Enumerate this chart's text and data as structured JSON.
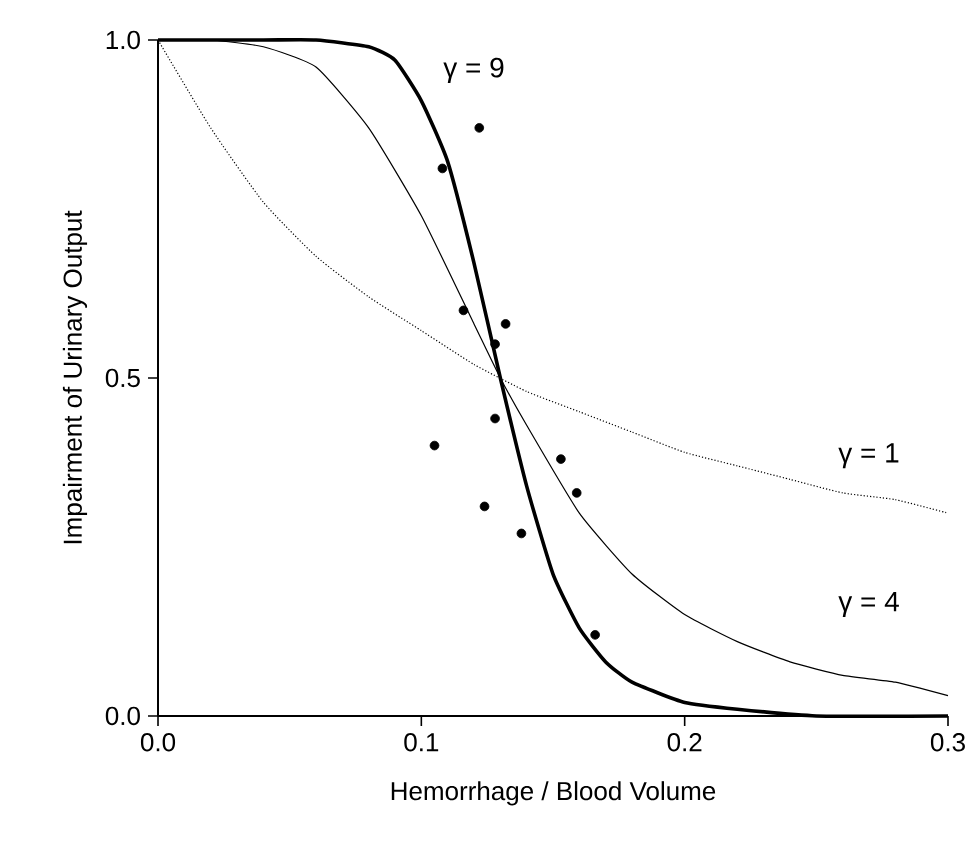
{
  "chart_data": {
    "type": "line",
    "xlabel": "Hemorrhage / Blood Volume",
    "ylabel": "Impairment of Urinary Output",
    "xlim": [
      0,
      0.3
    ],
    "xticks": [
      {
        "value": 0,
        "label": "0.0"
      },
      0.1,
      0.2,
      0.3
    ],
    "ylim": [
      0,
      1
    ],
    "yticks": [
      {
        "value": 0,
        "label": "0.0"
      },
      0.5,
      {
        "value": 1,
        "label": "1.0"
      }
    ],
    "grid": false,
    "legend": false,
    "series": [
      {
        "name": "γ = 1",
        "color": "#000000",
        "line_style": "dotted",
        "marker": "none",
        "x": [
          0,
          0.02,
          0.04,
          0.06,
          0.08,
          0.1,
          0.12,
          0.14,
          0.16,
          0.18,
          0.2,
          0.22,
          0.24,
          0.26,
          0.28,
          0.3
        ],
        "values": [
          1,
          0.87,
          0.76,
          0.68,
          0.62,
          0.57,
          0.52,
          0.48,
          0.45,
          0.42,
          0.39,
          0.37,
          0.35,
          0.33,
          0.32,
          0.3
        ]
      },
      {
        "name": "γ = 4",
        "color": "#000000",
        "line_style": "solid",
        "marker": "none",
        "x": [
          0,
          0.02,
          0.04,
          0.06,
          0.08,
          0.1,
          0.12,
          0.13,
          0.14,
          0.16,
          0.18,
          0.2,
          0.22,
          0.24,
          0.26,
          0.28,
          0.3
        ],
        "values": [
          1,
          1,
          0.99,
          0.96,
          0.87,
          0.74,
          0.58,
          0.5,
          0.43,
          0.3,
          0.21,
          0.15,
          0.11,
          0.08,
          0.06,
          0.05,
          0.03
        ]
      },
      {
        "name": "γ = 9",
        "color": "#000000",
        "line_style": "solid",
        "marker": "none",
        "x": [
          0,
          0.04,
          0.06,
          0.08,
          0.09,
          0.1,
          0.11,
          0.12,
          0.13,
          0.14,
          0.15,
          0.16,
          0.17,
          0.18,
          0.2,
          0.22,
          0.25,
          0.3
        ],
        "values": [
          1,
          1,
          1,
          0.99,
          0.97,
          0.91,
          0.82,
          0.67,
          0.5,
          0.34,
          0.21,
          0.13,
          0.08,
          0.05,
          0.02,
          0.01,
          0,
          0
        ]
      },
      {
        "type": "scatter",
        "color": "#000000",
        "marker": "circle",
        "x": [
          0.108,
          0.122,
          0.116,
          0.132,
          0.128,
          0.128,
          0.105,
          0.153,
          0.159,
          0.124,
          0.138,
          0.166
        ],
        "values": [
          0.81,
          0.87,
          0.6,
          0.58,
          0.55,
          0.44,
          0.4,
          0.38,
          0.33,
          0.31,
          0.27,
          0.12
        ]
      }
    ]
  }
}
